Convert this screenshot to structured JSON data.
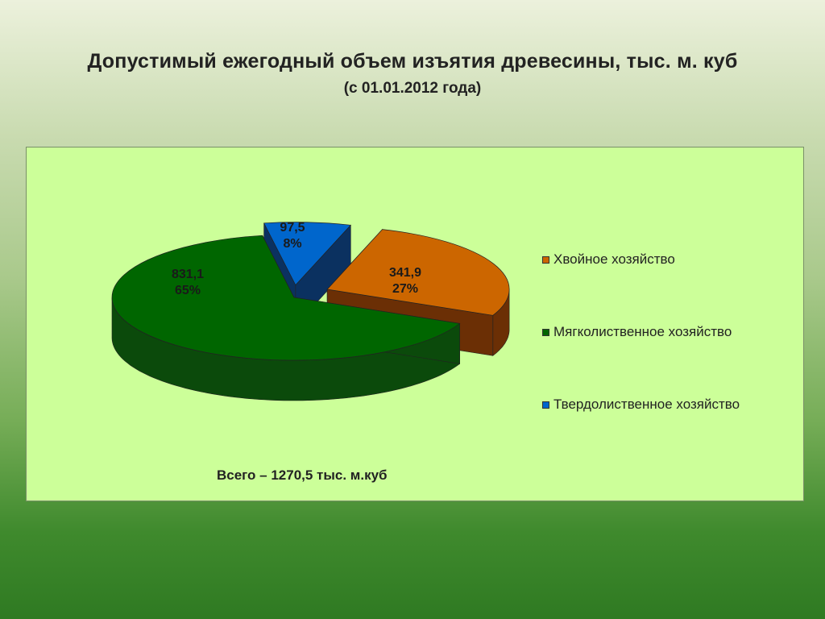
{
  "slide": {
    "title": "Допустимый ежегодный объем изъятия древесины, тыс. м. куб",
    "subtitle": "(с 01.01.2012 года)"
  },
  "chart_data": {
    "type": "pie",
    "title": "Допустимый ежегодный объем изъятия древесины, тыс. м. куб",
    "subtitle": "(с 01.01.2012 года)",
    "three_d": true,
    "exploded": true,
    "legend_position": "right",
    "slices": [
      {
        "name": "Хвойное хозяйство",
        "value": 341.9,
        "value_label": "341,9",
        "percent_label": "27%",
        "color": "#cc6600",
        "side_color": "#6b2f05"
      },
      {
        "name": "Мягколиственное хозяйство",
        "value": 831.1,
        "value_label": "831,1",
        "percent_label": "65%",
        "color": "#006600",
        "side_color": "#0b4a0b"
      },
      {
        "name": "Твердолиственное хозяйство",
        "value": 97.5,
        "value_label": "97,5",
        "percent_label": "8%",
        "color": "#0066cc",
        "side_color": "#0b3160"
      }
    ],
    "total_label": "Всего – 1270,5 тыс. м.куб"
  }
}
